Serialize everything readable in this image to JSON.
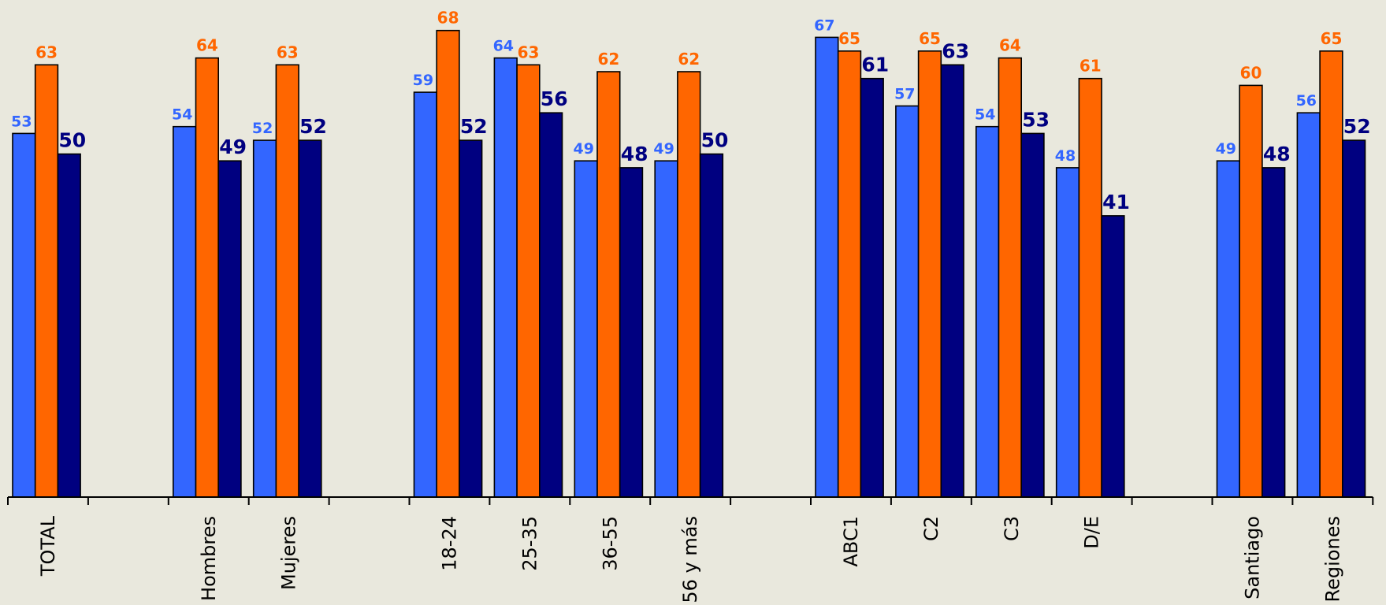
{
  "chart_data": {
    "type": "bar",
    "categories": [
      "TOTAL",
      "",
      "Hombres",
      "Mujeres",
      "",
      "18-24",
      "25-35",
      "36-55",
      "56 y más",
      "",
      "ABC1",
      "C2",
      "C3",
      "D/E",
      "",
      "Santiago",
      "Regiones"
    ],
    "series": [
      {
        "color": "#3366ff",
        "values": [
          53,
          null,
          54,
          52,
          null,
          59,
          64,
          49,
          49,
          null,
          67,
          57,
          54,
          48,
          null,
          49,
          56
        ]
      },
      {
        "color": "#ff6600",
        "values": [
          63,
          null,
          64,
          63,
          null,
          68,
          63,
          62,
          62,
          null,
          65,
          65,
          64,
          61,
          null,
          60,
          65
        ]
      },
      {
        "color": "#000080",
        "values": [
          50,
          null,
          49,
          52,
          null,
          52,
          56,
          48,
          50,
          null,
          61,
          63,
          53,
          41,
          null,
          48,
          52
        ]
      }
    ],
    "ylim": [
      0,
      72
    ],
    "grid": false,
    "legend": "none",
    "label_colors": [
      "#3366ff",
      "#ff6600",
      "#000080"
    ]
  }
}
